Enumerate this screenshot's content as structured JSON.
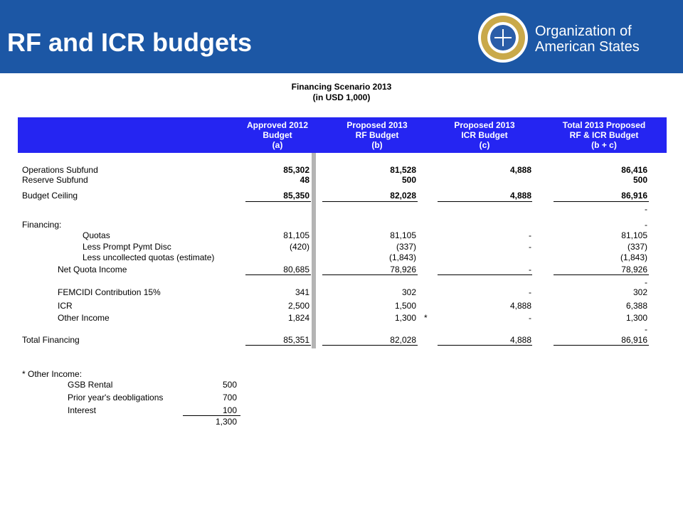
{
  "header": {
    "title": "RF and ICR budgets",
    "org_name": [
      "Organization of",
      "American States"
    ]
  },
  "table": {
    "title": [
      "Financing Scenario 2013",
      "(in USD 1,000)"
    ],
    "columns": [
      [
        "Approved 2012",
        "Budget",
        "(a)"
      ],
      [
        "Proposed 2013",
        "RF Budget",
        "(b)"
      ],
      [
        "Proposed 2013",
        "ICR Budget",
        "(c)"
      ],
      [
        "Total 2013 Proposed",
        "RF & ICR Budget",
        "(b + c)"
      ]
    ],
    "rows": [
      {
        "label": "Operations Subfund",
        "values": [
          "85,302",
          "81,528",
          "4,888",
          "86,416"
        ]
      },
      {
        "label": "Reserve Subfund",
        "values": [
          "48",
          "500",
          null,
          "500"
        ]
      },
      {
        "label": "Budget Ceiling",
        "values": [
          "85,350",
          "82,028",
          "4,888",
          "86,916"
        ]
      },
      {
        "label": null,
        "values": [
          null,
          null,
          null,
          "-"
        ]
      },
      {
        "label": "Financing:",
        "values": [
          null,
          null,
          null,
          "-"
        ]
      },
      {
        "label": "Quotas",
        "values": [
          "81,105",
          "81,105",
          "-",
          "81,105"
        ]
      },
      {
        "label": "Less Prompt Pymt Disc",
        "values": [
          "(420)",
          "(337)",
          "-",
          "(337)"
        ]
      },
      {
        "label": "Less uncollected quotas (estimate)",
        "values": [
          null,
          "(1,843)",
          null,
          "(1,843)"
        ]
      },
      {
        "label": "Net Quota Income",
        "values": [
          "80,685",
          "78,926",
          "-",
          "78,926"
        ]
      },
      {
        "label": null,
        "values": [
          null,
          null,
          null,
          "-"
        ]
      },
      {
        "label": "FEMCIDI Contribution 15%",
        "values": [
          "341",
          "302",
          "-",
          "302"
        ]
      },
      {
        "label": "ICR",
        "values": [
          "2,500",
          "1,500",
          "4,888",
          "6,388"
        ]
      },
      {
        "label": "Other Income",
        "values": [
          "1,824",
          "1,300",
          "-",
          "1,300"
        ],
        "note": "*"
      },
      {
        "label": null,
        "values": [
          null,
          null,
          null,
          "-"
        ]
      },
      {
        "label": "Total Financing",
        "values": [
          "85,351",
          "82,028",
          "4,888",
          "86,916"
        ]
      }
    ]
  },
  "footnote": {
    "title": "* Other Income:",
    "items": [
      {
        "label": "GSB Rental",
        "value": "500"
      },
      {
        "label": "Prior year's deobligations",
        "value": "700"
      },
      {
        "label": "Interest",
        "value": "100"
      }
    ],
    "total": "1,300"
  }
}
